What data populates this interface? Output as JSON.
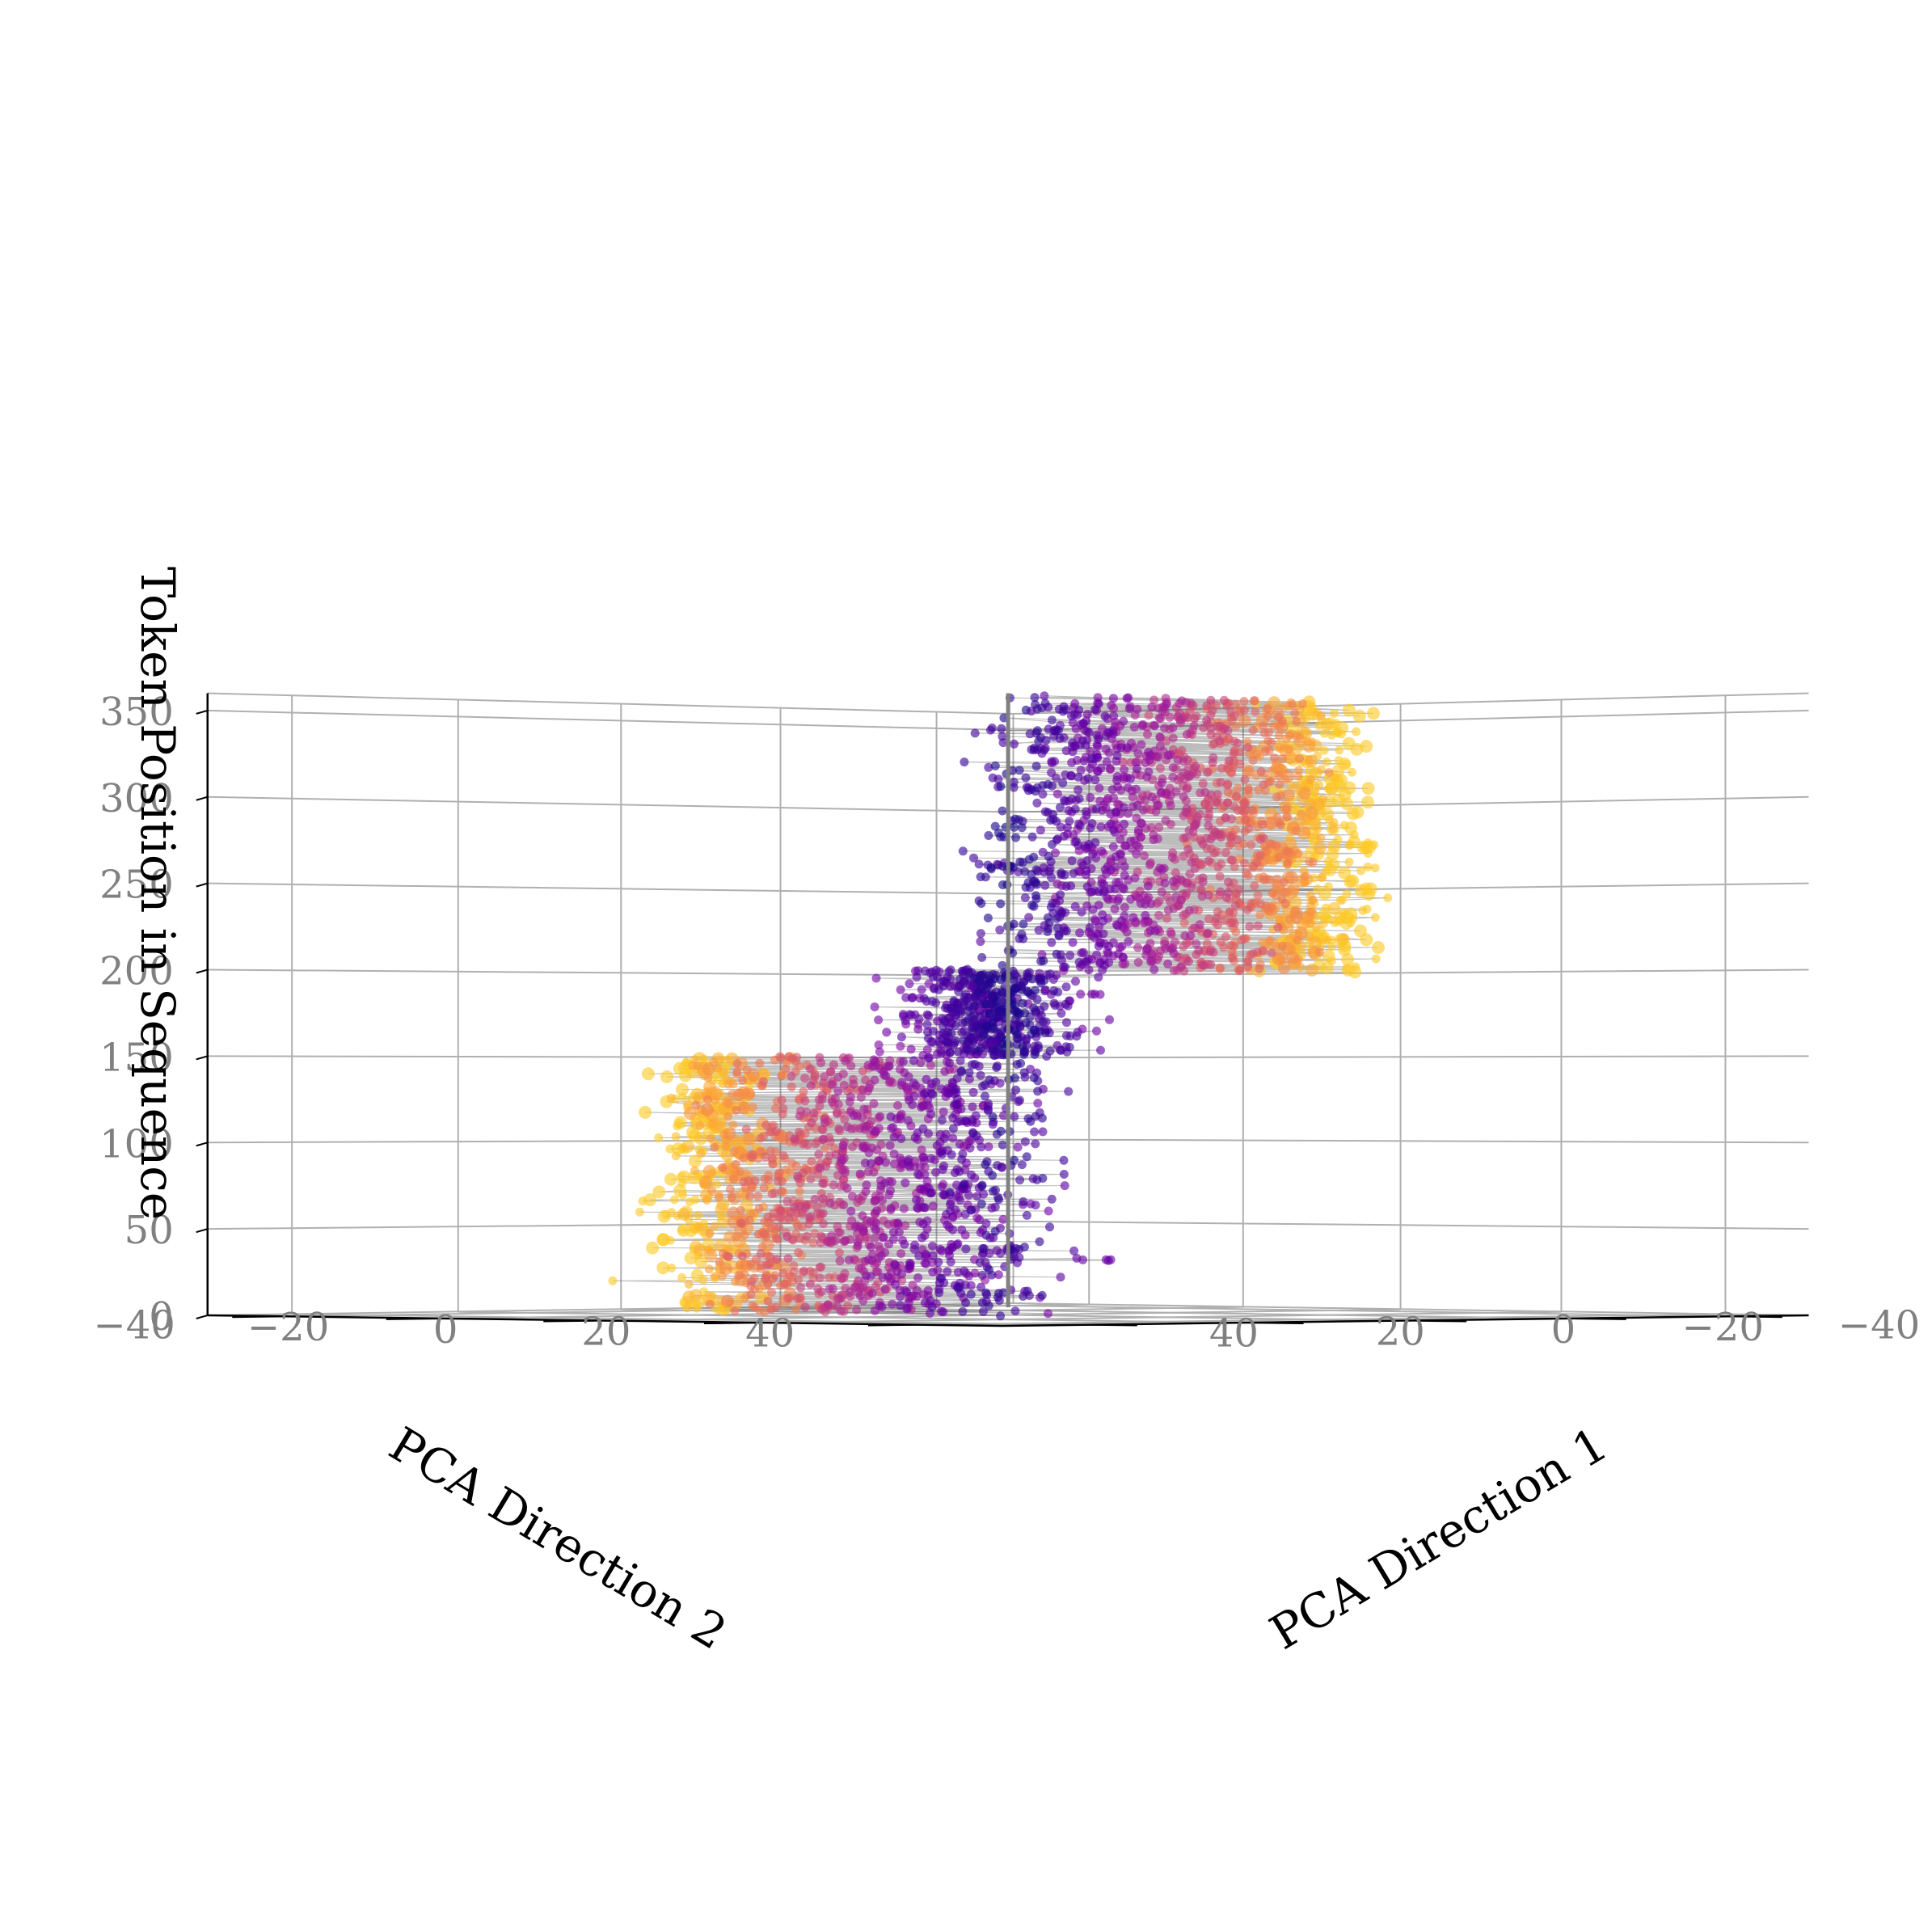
{
  "chart_data": {
    "type": "scatter3d",
    "title": "",
    "xlabel": "PCA Direction 1",
    "ylabel": "PCA Direction 2",
    "zlabel": "Token Position in Sequence",
    "xlim": [
      -50,
      50
    ],
    "ylim": [
      -50,
      50
    ],
    "zlim": [
      0,
      360
    ],
    "xticks": [
      -40,
      -20,
      0,
      20,
      40
    ],
    "yticks": [
      -40,
      -20,
      0,
      20,
      40
    ],
    "zticks": [
      0,
      50,
      100,
      150,
      200,
      250,
      300,
      350
    ],
    "xtick_labels": [
      "−40",
      "−20",
      "0",
      "20",
      "40"
    ],
    "ytick_labels": [
      "−40",
      "−20",
      "0",
      "20",
      "40"
    ],
    "ztick_labels": [
      "0",
      "50",
      "100",
      "150",
      "200",
      "250",
      "300",
      "350"
    ],
    "grid": true,
    "legend": "none",
    "colormap": "plasma",
    "color_meaning": "distance from the central axis",
    "center_line": {
      "x": 0,
      "y": 0,
      "z": [
        0,
        360
      ],
      "color": "#808080"
    },
    "n_points": 3600,
    "description_of_structure": {
      "segments": [
        {
          "z_range": [
            0,
            150
          ],
          "spread_direction": "PCA Direction 2 negative",
          "y_range": [
            -45,
            0
          ],
          "x_range": [
            -5,
            3
          ]
        },
        {
          "z_range": [
            150,
            200
          ],
          "spread_direction": "near center",
          "x_range": [
            -8,
            8
          ],
          "y_range": [
            -12,
            4
          ]
        },
        {
          "z_range": [
            200,
            360
          ],
          "spread_direction": "PCA Direction 1 negative",
          "x_range": [
            -45,
            0
          ],
          "y_range": [
            -4,
            4
          ]
        }
      ]
    },
    "colors": {
      "near_center": "#1c0c7a",
      "mid": "#8a1aa6",
      "far": "#d6577a",
      "farthest": "#fdb42f",
      "grid": "#b0b0b0",
      "axis_line": "#000000",
      "connecting_line": "#404040"
    }
  }
}
